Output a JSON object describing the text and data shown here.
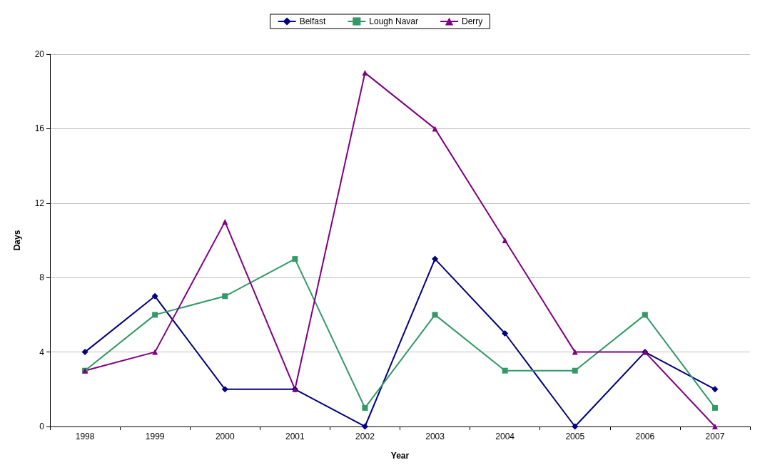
{
  "chart_data": {
    "type": "line",
    "xlabel": "Year",
    "ylabel": "Days",
    "categories": [
      "1998",
      "1999",
      "2000",
      "2001",
      "2002",
      "2003",
      "2004",
      "2005",
      "2006",
      "2007"
    ],
    "series": [
      {
        "name": "Belfast",
        "color": "#000080",
        "marker": "diamond",
        "values": [
          4,
          7,
          2,
          2,
          0,
          9,
          5,
          0,
          4,
          2
        ]
      },
      {
        "name": "Lough Navar",
        "color": "#339966",
        "marker": "square",
        "values": [
          3,
          6,
          7,
          9,
          1,
          6,
          3,
          3,
          6,
          1
        ]
      },
      {
        "name": "Derry",
        "color": "#800080",
        "marker": "triangle",
        "values": [
          3,
          4,
          11,
          2,
          19,
          16,
          10,
          4,
          4,
          0
        ]
      }
    ],
    "ylim": [
      0,
      20
    ],
    "yticks": [
      0,
      4,
      8,
      12,
      16,
      20
    ],
    "grid": "y",
    "legend": "top",
    "line_style": "solid"
  }
}
